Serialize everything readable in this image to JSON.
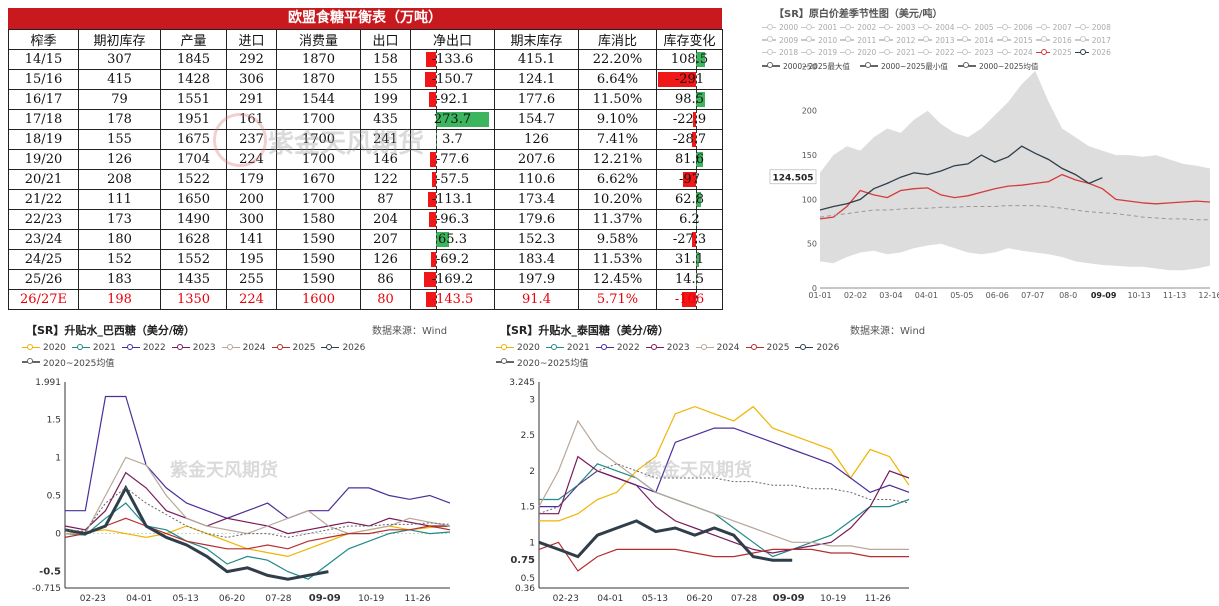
{
  "balance_table": {
    "title": "欧盟食糖平衡表（万吨）",
    "headers": [
      "榨季",
      "期初库存",
      "产量",
      "进口",
      "消费量",
      "出口",
      "净出口",
      "期末库存",
      "库消比",
      "库存变化"
    ],
    "rows": [
      {
        "season": "14/15",
        "opening": "307",
        "production": "1845",
        "imports": "292",
        "consumption": "1870",
        "exports": "158",
        "net_exports": "-133.6",
        "closing": "415.1",
        "ratio": "22.20%",
        "change": "108.5"
      },
      {
        "season": "15/16",
        "opening": "415",
        "production": "1428",
        "imports": "306",
        "consumption": "1870",
        "exports": "155",
        "net_exports": "-150.7",
        "closing": "124.1",
        "ratio": "6.64%",
        "change": "-291"
      },
      {
        "season": "16/17",
        "opening": "79",
        "production": "1551",
        "imports": "291",
        "consumption": "1544",
        "exports": "199",
        "net_exports": "-92.1",
        "closing": "177.6",
        "ratio": "11.50%",
        "change": "98.5"
      },
      {
        "season": "17/18",
        "opening": "178",
        "production": "1951",
        "imports": "161",
        "consumption": "1700",
        "exports": "435",
        "net_exports": "273.7",
        "closing": "154.7",
        "ratio": "9.10%",
        "change": "-22.9"
      },
      {
        "season": "18/19",
        "opening": "155",
        "production": "1675",
        "imports": "237",
        "consumption": "1700",
        "exports": "241",
        "net_exports": "3.7",
        "closing": "126",
        "ratio": "7.41%",
        "change": "-28.7"
      },
      {
        "season": "19/20",
        "opening": "126",
        "production": "1704",
        "imports": "224",
        "consumption": "1700",
        "exports": "146",
        "net_exports": "-77.6",
        "closing": "207.6",
        "ratio": "12.21%",
        "change": "81.6"
      },
      {
        "season": "20/21",
        "opening": "208",
        "production": "1522",
        "imports": "179",
        "consumption": "1670",
        "exports": "122",
        "net_exports": "-57.5",
        "closing": "110.6",
        "ratio": "6.62%",
        "change": "-97"
      },
      {
        "season": "21/22",
        "opening": "111",
        "production": "1650",
        "imports": "200",
        "consumption": "1700",
        "exports": "87",
        "net_exports": "-113.1",
        "closing": "173.4",
        "ratio": "10.20%",
        "change": "62.8"
      },
      {
        "season": "22/23",
        "opening": "173",
        "production": "1490",
        "imports": "300",
        "consumption": "1580",
        "exports": "204",
        "net_exports": "-96.3",
        "closing": "179.6",
        "ratio": "11.37%",
        "change": "6.2"
      },
      {
        "season": "23/24",
        "opening": "180",
        "production": "1628",
        "imports": "141",
        "consumption": "1590",
        "exports": "207",
        "net_exports": "65.3",
        "closing": "152.3",
        "ratio": "9.58%",
        "change": "-27.3"
      },
      {
        "season": "24/25",
        "opening": "152",
        "production": "1552",
        "imports": "195",
        "consumption": "1590",
        "exports": "126",
        "net_exports": "-69.2",
        "closing": "183.4",
        "ratio": "11.53%",
        "change": "31.1"
      },
      {
        "season": "25/26",
        "opening": "183",
        "production": "1435",
        "imports": "255",
        "consumption": "1590",
        "exports": "86",
        "net_exports": "-169.2",
        "closing": "197.9",
        "ratio": "12.45%",
        "change": "14.5"
      },
      {
        "season": "26/27E",
        "opening": "198",
        "production": "1350",
        "imports": "224",
        "consumption": "1600",
        "exports": "80",
        "net_exports": "-143.5",
        "closing": "91.4",
        "ratio": "5.71%",
        "change": "-106"
      }
    ],
    "net_exports_values": [
      -133.6,
      -150.7,
      -92.1,
      273.7,
      3.7,
      -77.6,
      -57.5,
      -113.1,
      -96.3,
      65.3,
      -69.2,
      -169.2,
      -143.5
    ],
    "change_values": [
      108.5,
      -291,
      98.5,
      -22.9,
      -28.7,
      81.6,
      -97,
      62.8,
      6.2,
      -27.3,
      31.1,
      14.5,
      -106
    ],
    "watermark": "紫金天风期货"
  },
  "colors": {
    "header_red": "#c8191e",
    "bar_pos": "#3cb55e",
    "bar_neg": "#ef1717",
    "band": "#d9d9d9",
    "y2025": "#d63a3a",
    "y2026": "#2f3e4a",
    "avg": "#999999"
  },
  "raw_sugar_chart": {
    "title": "【SR】原白价差季节性图（美元/吨）",
    "legend_rows": [
      [
        "2000",
        "2001",
        "2002",
        "2003",
        "2004",
        "2005",
        "2006",
        "2007",
        "2008"
      ],
      [
        "2009",
        "2010",
        "2011",
        "2012",
        "2013",
        "2014",
        "2015",
        "2016",
        "2017"
      ],
      [
        "2018",
        "2019",
        "2020",
        "2021",
        "2022",
        "2023",
        "2024",
        "2025",
        "2026"
      ]
    ],
    "legend_extra": [
      "2000~2025最大值",
      "2000~2025最小值",
      "2000~2025均值"
    ],
    "highlight_label": "124.505",
    "chart_data": {
      "type": "line",
      "title": "【SR】原白价差季节性图（美元/吨）",
      "x_ticks": [
        "01-01",
        "02-02",
        "03-04",
        "04-01",
        "05-05",
        "06-06",
        "07-07",
        "08-0",
        "09-09",
        "10-13",
        "11-13",
        "12-16"
      ],
      "y_ticks": [
        0,
        50,
        100,
        150,
        200,
        250
      ],
      "ylim": [
        0,
        255
      ],
      "highlight_x": "09-09",
      "series": [
        {
          "name": "2025",
          "values": [
            78,
            80,
            92,
            110,
            105,
            102,
            110,
            112,
            113,
            105,
            102,
            104,
            108,
            112,
            115,
            116,
            118,
            120,
            128,
            122,
            118,
            112,
            100,
            98,
            96,
            95,
            96,
            97,
            98,
            97
          ]
        },
        {
          "name": "2026",
          "values": [
            88,
            92,
            95,
            100,
            112,
            118,
            125,
            130,
            128,
            132,
            138,
            140,
            150,
            142,
            148,
            160,
            152,
            145,
            135,
            128,
            118,
            124.5
          ]
        },
        {
          "name": "2000~2025均值",
          "values": [
            80,
            82,
            84,
            86,
            88,
            88,
            89,
            90,
            90,
            91,
            91,
            92,
            92,
            92,
            93,
            93,
            93,
            92,
            90,
            88,
            86,
            85,
            84,
            82,
            80,
            79,
            78,
            78,
            77,
            77
          ]
        }
      ],
      "band_max": [
        130,
        150,
        160,
        155,
        170,
        180,
        175,
        190,
        200,
        185,
        175,
        170,
        180,
        195,
        210,
        230,
        245,
        210,
        180,
        170,
        160,
        155,
        150,
        150,
        148,
        150,
        145,
        140,
        138,
        135
      ],
      "band_min": [
        30,
        28,
        35,
        40,
        42,
        38,
        40,
        45,
        48,
        50,
        45,
        40,
        38,
        40,
        45,
        42,
        40,
        38,
        35,
        30,
        28,
        26,
        25,
        24,
        24,
        22,
        20,
        20,
        22,
        25
      ]
    }
  },
  "brazil_chart": {
    "title": "【SR】升贴水_巴西糖（美分/磅）",
    "source": "数据来源：Wind",
    "legend": [
      "2020",
      "2021",
      "2022",
      "2023",
      "2024",
      "2025",
      "2026",
      "2020~2025均值"
    ],
    "watermark": "紫金天风期货",
    "chart_data": {
      "type": "line",
      "title": "【SR】升贴水_巴西糖（美分/磅）",
      "x_ticks": [
        "02-23",
        "04-01",
        "05-13",
        "06-20",
        "07-28",
        "09-09",
        "10-19",
        "11-26"
      ],
      "y_ticks": [
        -0.715,
        -0.5,
        0,
        0.5,
        1,
        1.5,
        1.991
      ],
      "ylim": [
        -0.715,
        1.991
      ],
      "highlight_y": -0.5,
      "highlight_x": "09-09",
      "series": [
        {
          "name": "2020",
          "values": [
            0,
            0.02,
            0.05,
            0,
            -0.05,
            0,
            0.1,
            0,
            -0.1,
            -0.2,
            -0.25,
            -0.3,
            -0.2,
            -0.1,
            0,
            0.05,
            0.1,
            0.05,
            0.08,
            0.1
          ]
        },
        {
          "name": "2021",
          "values": [
            0,
            -0.02,
            0.2,
            0.4,
            0.1,
            0.05,
            -0.1,
            -0.2,
            -0.4,
            -0.3,
            -0.35,
            -0.5,
            -0.6,
            -0.4,
            -0.2,
            -0.1,
            0,
            0.05,
            0,
            0.02
          ]
        },
        {
          "name": "2022",
          "values": [
            0.3,
            0.3,
            1.8,
            1.8,
            0.9,
            0.6,
            0.4,
            0.3,
            0.2,
            0.3,
            0.4,
            0.2,
            0.3,
            0.3,
            0.6,
            0.6,
            0.5,
            0.45,
            0.5,
            0.4
          ]
        },
        {
          "name": "2023",
          "values": [
            0.1,
            0.05,
            0.3,
            0.8,
            0.6,
            0.3,
            0.2,
            0.1,
            0.2,
            0.15,
            0.1,
            0,
            0.05,
            0.1,
            0.15,
            0.1,
            0.2,
            0.15,
            0.1,
            0.1
          ]
        },
        {
          "name": "2024",
          "values": [
            0,
            0,
            0.5,
            1.0,
            0.9,
            0.5,
            0.2,
            0.1,
            0.05,
            0,
            0.1,
            0.2,
            0.3,
            0.1,
            0,
            0.05,
            0.1,
            0.2,
            0.15,
            0.1
          ]
        },
        {
          "name": "2025",
          "values": [
            -0.05,
            0,
            0.1,
            0.2,
            0.1,
            0,
            -0.1,
            -0.15,
            -0.2,
            -0.2,
            -0.15,
            -0.2,
            -0.1,
            -0.05,
            0,
            0,
            0.05,
            0.05,
            0.1,
            0.05
          ]
        },
        {
          "name": "2026",
          "values": [
            0.05,
            0,
            0.1,
            0.6,
            0.1,
            -0.05,
            -0.15,
            -0.3,
            -0.5,
            -0.45,
            -0.55,
            -0.6,
            -0.55,
            -0.5
          ]
        },
        {
          "name": "2020~2025均值",
          "values": [
            0.05,
            0.03,
            0.4,
            0.6,
            0.4,
            0.25,
            0.1,
            0,
            -0.05,
            0,
            0,
            -0.05,
            0,
            0.05,
            0.1,
            0.1,
            0.12,
            0.12,
            0.14,
            0.12
          ]
        }
      ]
    }
  },
  "thai_chart": {
    "title": "【SR】升贴水_泰国糖（美分/磅）",
    "source": "数据来源：Wind",
    "legend": [
      "2020",
      "2021",
      "2022",
      "2023",
      "2024",
      "2025",
      "2026",
      "2020~2025均值"
    ],
    "watermark": "紫金天风期货",
    "chart_data": {
      "type": "line",
      "title": "【SR】升贴水_泰国糖（美分/磅）",
      "x_ticks": [
        "02-23",
        "04-01",
        "05-13",
        "06-20",
        "07-28",
        "09-09",
        "10-19",
        "11-26"
      ],
      "y_ticks": [
        0.36,
        0.5,
        0.75,
        1,
        1.5,
        2,
        2.5,
        3,
        3.245
      ],
      "ylim": [
        0.36,
        3.245
      ],
      "highlight_y": 0.75,
      "highlight_x": "09-09",
      "series": [
        {
          "name": "2020",
          "values": [
            1.3,
            1.3,
            1.4,
            1.6,
            1.7,
            2.0,
            2.2,
            2.8,
            2.9,
            2.8,
            2.7,
            2.9,
            2.6,
            2.5,
            2.4,
            2.3,
            1.9,
            2.3,
            2.2,
            1.8
          ]
        },
        {
          "name": "2021",
          "values": [
            1.6,
            1.6,
            1.8,
            2.1,
            2.0,
            1.9,
            1.7,
            1.6,
            1.5,
            1.4,
            1.2,
            1.0,
            0.8,
            0.9,
            1.0,
            1.1,
            1.3,
            1.5,
            1.5,
            1.6
          ]
        },
        {
          "name": "2022",
          "values": [
            1.5,
            1.5,
            1.8,
            2.0,
            1.9,
            1.8,
            1.7,
            2.4,
            2.5,
            2.6,
            2.6,
            2.5,
            2.4,
            2.3,
            2.2,
            2.1,
            1.9,
            1.7,
            1.8,
            1.7
          ]
        },
        {
          "name": "2023",
          "values": [
            1.4,
            1.4,
            2.2,
            2.0,
            1.9,
            1.8,
            1.5,
            1.3,
            1.2,
            1.1,
            1.0,
            0.9,
            0.85,
            0.9,
            0.95,
            1.0,
            1.2,
            1.5,
            2.0,
            1.9
          ]
        },
        {
          "name": "2024",
          "values": [
            1.5,
            2.0,
            2.7,
            2.3,
            2.1,
            1.9,
            1.7,
            1.6,
            1.5,
            1.4,
            1.3,
            1.2,
            1.1,
            1.0,
            1.0,
            0.95,
            0.95,
            0.9,
            0.9,
            0.9
          ]
        },
        {
          "name": "2025",
          "values": [
            0.9,
            1.0,
            0.6,
            0.8,
            0.9,
            0.9,
            0.9,
            0.9,
            0.85,
            0.8,
            0.8,
            0.85,
            0.9,
            0.9,
            0.9,
            0.85,
            0.85,
            0.8,
            0.8,
            0.8
          ]
        },
        {
          "name": "2026",
          "values": [
            1.0,
            0.9,
            0.8,
            1.1,
            1.2,
            1.3,
            1.15,
            1.2,
            1.1,
            1.2,
            1.1,
            0.8,
            0.75,
            0.75
          ]
        },
        {
          "name": "2020~2025均值",
          "values": [
            1.4,
            1.5,
            1.8,
            2.0,
            2.1,
            2.0,
            1.9,
            1.9,
            1.9,
            1.9,
            1.85,
            1.85,
            1.8,
            1.8,
            1.75,
            1.75,
            1.7,
            1.6,
            1.6,
            1.55
          ]
        }
      ]
    }
  }
}
